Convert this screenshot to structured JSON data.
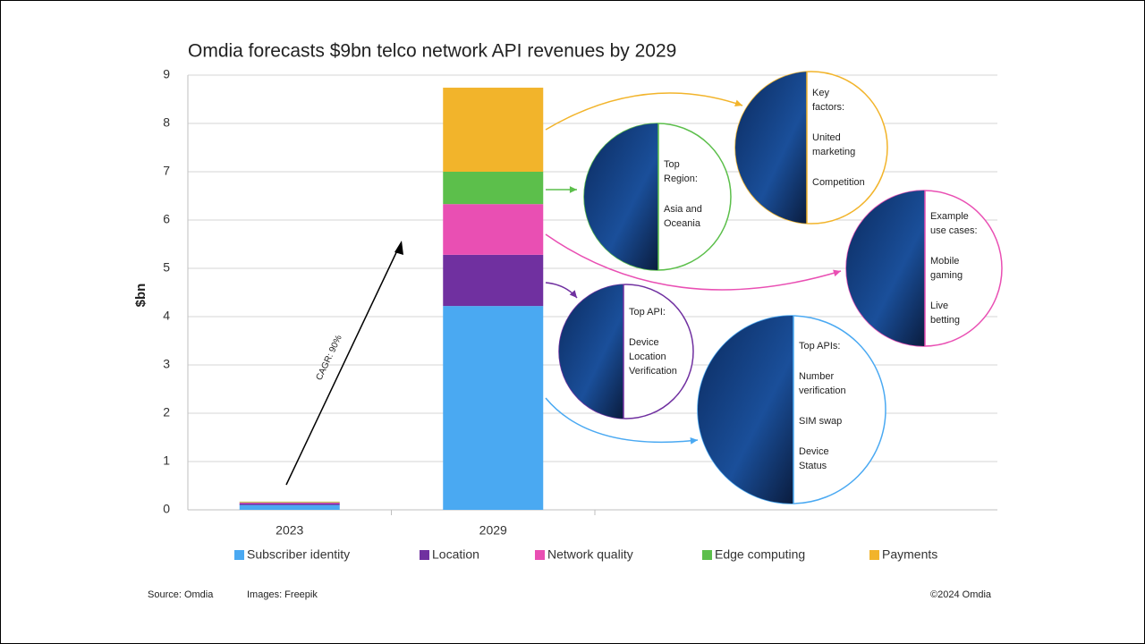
{
  "chart_data": {
    "type": "stacked_bar",
    "title": "Omdia forecasts $9bn telco network API revenues by 2029",
    "y_label": "$bn",
    "categories": [
      "2023",
      "2029"
    ],
    "series": [
      {
        "name": "Subscriber identity",
        "color": "#4aa9f2",
        "values": [
          0.1,
          4.22
        ]
      },
      {
        "name": "Location",
        "color": "#7030a0",
        "values": [
          0.03,
          1.06
        ]
      },
      {
        "name": "Network quality",
        "color": "#e94fb3",
        "values": [
          0.02,
          1.05
        ]
      },
      {
        "name": "Edge computing",
        "color": "#5cbf4b",
        "values": [
          0.01,
          0.67
        ]
      },
      {
        "name": "Payments",
        "color": "#f2b42b",
        "values": [
          0.01,
          1.74
        ]
      }
    ],
    "ylim": [
      0,
      9
    ],
    "yticks": [
      0,
      1,
      2,
      3,
      4,
      5,
      6,
      7,
      8,
      9
    ],
    "grid": true,
    "cagr_label": "CAGR: 90%",
    "callouts": [
      {
        "color": "#5cbf4b",
        "paragraphs": [
          [
            "Top",
            "Region:"
          ],
          [
            "Asia and",
            "Oceania"
          ]
        ]
      },
      {
        "color": "#f2b42b",
        "paragraphs": [
          [
            "Key",
            "factors:"
          ],
          [
            "United",
            "marketing"
          ],
          [
            "Competition"
          ]
        ]
      },
      {
        "color": "#e94fb3",
        "paragraphs": [
          [
            "Example",
            "use cases:"
          ],
          [
            "Mobile",
            "gaming"
          ],
          [
            "Live",
            "betting"
          ]
        ]
      },
      {
        "color": "#7030a0",
        "paragraphs": [
          [
            "Top API:"
          ],
          [
            "Device",
            "Location",
            "Verification"
          ]
        ]
      },
      {
        "color": "#4aa9f2",
        "paragraphs": [
          [
            "Top APIs:"
          ],
          [
            "Number",
            "verification"
          ],
          [
            "SIM swap"
          ],
          [
            "Device",
            "Status"
          ]
        ]
      }
    ],
    "source": "Source: Omdia",
    "images_credit": "Images: Freepik",
    "copyright": "©2024 Omdia"
  }
}
